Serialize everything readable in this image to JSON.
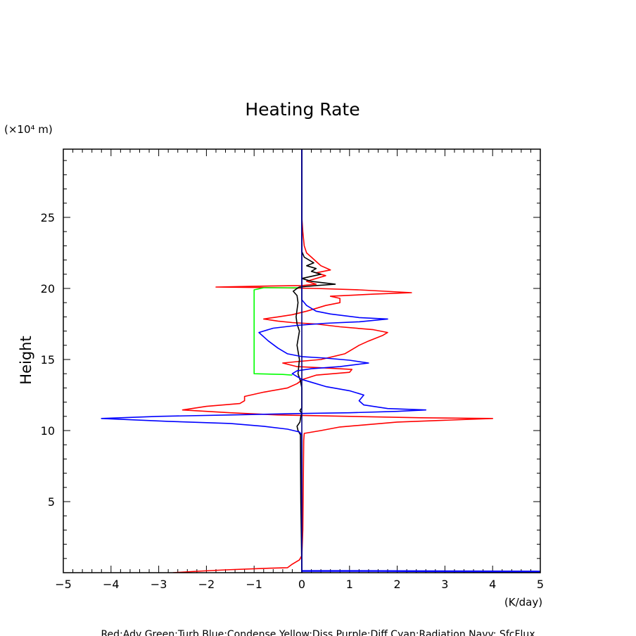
{
  "chart_data": {
    "type": "line",
    "title": "Heating Rate",
    "ylabel": "Height",
    "yunit": "(×10⁴ m)",
    "xunit": "(K/day)",
    "xlim": [
      -5,
      5
    ],
    "ylim": [
      0,
      29.8
    ],
    "xticks": [
      -5,
      -4,
      -3,
      -2,
      -1,
      0,
      1,
      2,
      3,
      4,
      5
    ],
    "yticks": [
      5,
      10,
      15,
      20,
      25
    ],
    "grid": false,
    "legend_text": "Red:Adv  Green:Turb  Blue:Condense  Yellow:Diss  Purple:Diff  Cyan:Radiation  Navy: SfcFlux",
    "series": [
      {
        "color": "#ff0000",
        "points": [
          [
            -2.7,
            0.0
          ],
          [
            -2.2,
            0.1
          ],
          [
            -1.6,
            0.2
          ],
          [
            -0.8,
            0.3
          ],
          [
            -0.3,
            0.35
          ],
          [
            -0.2,
            0.6
          ],
          [
            -0.05,
            0.9
          ],
          [
            0.0,
            1.2
          ],
          [
            0.02,
            3
          ],
          [
            0.03,
            6
          ],
          [
            0.04,
            9.3
          ],
          [
            0.05,
            9.8
          ],
          [
            0.4,
            10.0
          ],
          [
            0.8,
            10.25
          ],
          [
            2.0,
            10.6
          ],
          [
            4.0,
            10.85
          ],
          [
            2.5,
            10.9
          ],
          [
            1.0,
            11.0
          ],
          [
            -0.5,
            11.1
          ],
          [
            -1.5,
            11.25
          ],
          [
            -2.5,
            11.45
          ],
          [
            -2.0,
            11.7
          ],
          [
            -1.3,
            11.9
          ],
          [
            -1.2,
            12.1
          ],
          [
            -1.2,
            12.4
          ],
          [
            -0.8,
            12.7
          ],
          [
            -0.3,
            13.0
          ],
          [
            -0.1,
            13.3
          ],
          [
            0.02,
            13.6
          ],
          [
            0.3,
            13.9
          ],
          [
            1.0,
            14.1
          ],
          [
            1.05,
            14.3
          ],
          [
            0.5,
            14.4
          ],
          [
            -0.1,
            14.5
          ],
          [
            -0.4,
            14.75
          ],
          [
            -0.1,
            14.85
          ],
          [
            0.4,
            15.0
          ],
          [
            0.9,
            15.4
          ],
          [
            1.0,
            15.6
          ],
          [
            1.2,
            16.0
          ],
          [
            1.4,
            16.3
          ],
          [
            1.7,
            16.7
          ],
          [
            1.8,
            16.9
          ],
          [
            1.5,
            17.1
          ],
          [
            0.8,
            17.3
          ],
          [
            0.3,
            17.5
          ],
          [
            -0.2,
            17.6
          ],
          [
            -0.5,
            17.7
          ],
          [
            -0.8,
            17.85
          ],
          [
            -0.5,
            18.0
          ],
          [
            -0.2,
            18.15
          ],
          [
            0.1,
            18.4
          ],
          [
            0.3,
            18.6
          ],
          [
            0.5,
            18.8
          ],
          [
            0.8,
            19.0
          ],
          [
            0.8,
            19.3
          ],
          [
            0.6,
            19.45
          ],
          [
            1.5,
            19.6
          ],
          [
            2.3,
            19.7
          ],
          [
            1.2,
            19.9
          ],
          [
            0.3,
            20.0
          ],
          [
            -0.5,
            20.05
          ],
          [
            -1.8,
            20.1
          ],
          [
            -1.0,
            20.15
          ],
          [
            0.0,
            20.2
          ],
          [
            0.3,
            20.3
          ],
          [
            0.1,
            20.5
          ],
          [
            0.5,
            20.9
          ],
          [
            0.3,
            21.1
          ],
          [
            0.6,
            21.3
          ],
          [
            0.4,
            21.6
          ],
          [
            0.3,
            21.9
          ],
          [
            0.2,
            22.2
          ],
          [
            0.1,
            22.5
          ],
          [
            0.05,
            23.0
          ],
          [
            0.02,
            24.0
          ],
          [
            0.0,
            25.0
          ],
          [
            0.0,
            29.8
          ]
        ]
      },
      {
        "color": "#00ff00",
        "points": [
          [
            -0.2,
            13.9
          ],
          [
            -0.4,
            13.95
          ],
          [
            -1.0,
            14.0
          ],
          [
            -1.0,
            17.0
          ],
          [
            -1.0,
            19.9
          ],
          [
            -0.8,
            20.05
          ],
          [
            -0.1,
            20.05
          ],
          [
            0.0,
            20.1
          ]
        ]
      },
      {
        "color": "#000000",
        "points": [
          [
            0.0,
            0.0
          ],
          [
            0.0,
            0.2
          ],
          [
            -0.02,
            5.0
          ],
          [
            -0.03,
            9.7
          ],
          [
            -0.08,
            10.0
          ],
          [
            -0.1,
            10.3
          ],
          [
            -0.04,
            10.6
          ],
          [
            -0.02,
            11.0
          ],
          [
            0.0,
            11.2
          ],
          [
            -0.04,
            11.4
          ],
          [
            0.0,
            11.6
          ],
          [
            0.0,
            13.0
          ],
          [
            -0.03,
            13.5
          ],
          [
            -0.08,
            14.0
          ],
          [
            -0.05,
            15.0
          ],
          [
            -0.1,
            16.0
          ],
          [
            -0.05,
            17.0
          ],
          [
            -0.1,
            17.5
          ],
          [
            -0.12,
            18.0
          ],
          [
            -0.1,
            18.5
          ],
          [
            -0.08,
            19.0
          ],
          [
            -0.1,
            19.5
          ],
          [
            -0.18,
            19.8
          ],
          [
            -0.1,
            20.0
          ],
          [
            -0.05,
            20.1
          ],
          [
            0.3,
            20.2
          ],
          [
            0.7,
            20.3
          ],
          [
            0.2,
            20.5
          ],
          [
            0.0,
            20.7
          ],
          [
            0.4,
            21.0
          ],
          [
            0.2,
            21.2
          ],
          [
            0.3,
            21.4
          ],
          [
            0.1,
            21.6
          ],
          [
            0.25,
            21.8
          ],
          [
            0.05,
            22.2
          ],
          [
            0.0,
            22.6
          ],
          [
            0.0,
            29.8
          ]
        ]
      },
      {
        "color": "#0000ff",
        "points": [
          [
            0.0,
            0.0
          ],
          [
            0.0,
            0.1
          ],
          [
            1.6,
            0.1
          ],
          [
            5.0,
            0.05
          ],
          [
            5.0,
            0.1
          ],
          [
            0.0,
            0.15
          ],
          [
            0.0,
            9.7
          ],
          [
            -0.05,
            9.9
          ],
          [
            -0.3,
            10.1
          ],
          [
            -0.8,
            10.3
          ],
          [
            -1.5,
            10.5
          ],
          [
            -2.8,
            10.65
          ],
          [
            -4.2,
            10.85
          ],
          [
            -3.0,
            11.0
          ],
          [
            -1.5,
            11.1
          ],
          [
            0.0,
            11.2
          ],
          [
            1.0,
            11.25
          ],
          [
            2.0,
            11.35
          ],
          [
            2.6,
            11.45
          ],
          [
            1.8,
            11.55
          ],
          [
            1.3,
            11.8
          ],
          [
            1.2,
            12.1
          ],
          [
            1.3,
            12.5
          ],
          [
            1.0,
            12.8
          ],
          [
            0.5,
            13.1
          ],
          [
            0.2,
            13.4
          ],
          [
            0.0,
            13.6
          ],
          [
            -0.1,
            13.8
          ],
          [
            -0.2,
            14.0
          ],
          [
            -0.1,
            14.2
          ],
          [
            0.2,
            14.35
          ],
          [
            0.8,
            14.5
          ],
          [
            1.4,
            14.75
          ],
          [
            1.0,
            14.95
          ],
          [
            0.5,
            15.1
          ],
          [
            0.0,
            15.2
          ],
          [
            -0.3,
            15.4
          ],
          [
            -0.5,
            15.8
          ],
          [
            -0.7,
            16.3
          ],
          [
            -0.9,
            16.9
          ],
          [
            -0.6,
            17.2
          ],
          [
            -0.1,
            17.4
          ],
          [
            0.5,
            17.55
          ],
          [
            1.2,
            17.65
          ],
          [
            1.8,
            17.85
          ],
          [
            1.2,
            17.95
          ],
          [
            0.6,
            18.2
          ],
          [
            0.3,
            18.4
          ],
          [
            0.1,
            18.8
          ],
          [
            0.0,
            19.2
          ],
          [
            0.0,
            19.6
          ],
          [
            0.0,
            29.8
          ]
        ]
      },
      {
        "color": "#000080",
        "points": [
          [
            0.0,
            0.0
          ],
          [
            0.0,
            29.8
          ]
        ]
      }
    ]
  }
}
